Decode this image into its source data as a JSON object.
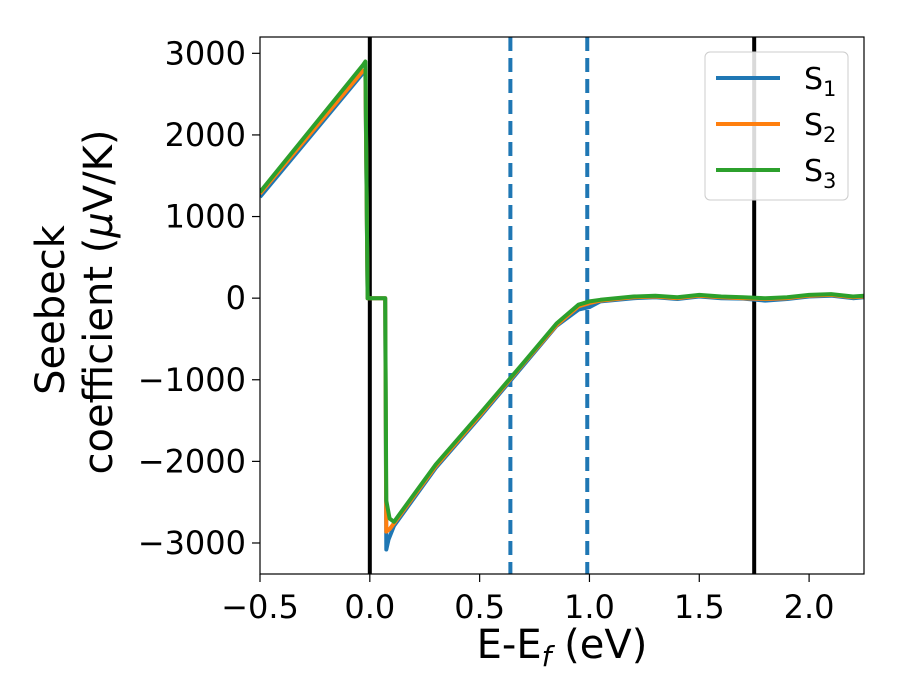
{
  "chart_data": {
    "type": "line",
    "xlabel": "E-E",
    "xlabel_sub": "f",
    "xlabel_unit": " (eV)",
    "ylabel_line1": "Seebeck",
    "ylabel_line2_prefix": "coefficient  (",
    "ylabel_mu": "μ",
    "ylabel_line2_suffix": "V/K)",
    "xlim": [
      -0.5,
      2.25
    ],
    "ylim": [
      -3380,
      3200
    ],
    "xticks": [
      -0.5,
      0.0,
      0.5,
      1.0,
      1.5,
      2.0
    ],
    "xtick_labels": [
      "−0.5",
      "0.0",
      "0.5",
      "1.0",
      "1.5",
      "2.0"
    ],
    "yticks": [
      3000,
      2000,
      1000,
      0,
      -1000,
      -2000,
      -3000
    ],
    "ytick_labels": [
      "3000",
      "2000",
      "1000",
      "0",
      "−1000",
      "−2000",
      "−3000"
    ],
    "grid": false,
    "legend_position": "top-right",
    "vlines": [
      {
        "x": 0.0,
        "color": "#000000",
        "style": "solid"
      },
      {
        "x": 1.75,
        "color": "#000000",
        "style": "solid"
      },
      {
        "x": 0.64,
        "color": "#1f77b4",
        "style": "dashed"
      },
      {
        "x": 0.99,
        "color": "#1f77b4",
        "style": "dashed"
      }
    ],
    "series": [
      {
        "name": "S",
        "sub": "1",
        "color": "#1f77b4",
        "points": [
          [
            -0.5,
            1240
          ],
          [
            -0.03,
            2760
          ],
          [
            -0.02,
            2740
          ],
          [
            -0.01,
            0
          ],
          [
            0.07,
            0
          ],
          [
            0.075,
            -3080
          ],
          [
            0.085,
            -2960
          ],
          [
            0.11,
            -2790
          ],
          [
            0.3,
            -2080
          ],
          [
            0.5,
            -1460
          ],
          [
            0.7,
            -820
          ],
          [
            0.85,
            -340
          ],
          [
            0.95,
            -140
          ],
          [
            1.0,
            -110
          ],
          [
            1.05,
            -40
          ],
          [
            1.2,
            0
          ],
          [
            1.3,
            10
          ],
          [
            1.4,
            -10
          ],
          [
            1.5,
            20
          ],
          [
            1.6,
            0
          ],
          [
            1.7,
            -5
          ],
          [
            1.8,
            -30
          ],
          [
            1.9,
            -10
          ],
          [
            2.0,
            20
          ],
          [
            2.1,
            30
          ],
          [
            2.2,
            0
          ],
          [
            2.25,
            10
          ]
        ]
      },
      {
        "name": "S",
        "sub": "2",
        "color": "#ff7f0e",
        "points": [
          [
            -0.5,
            1280
          ],
          [
            -0.03,
            2790
          ],
          [
            -0.02,
            2780
          ],
          [
            -0.01,
            0
          ],
          [
            0.07,
            0
          ],
          [
            0.075,
            -2860
          ],
          [
            0.09,
            -2830
          ],
          [
            0.11,
            -2760
          ],
          [
            0.3,
            -2060
          ],
          [
            0.5,
            -1440
          ],
          [
            0.7,
            -800
          ],
          [
            0.85,
            -330
          ],
          [
            0.95,
            -100
          ],
          [
            1.0,
            -60
          ],
          [
            1.05,
            -30
          ],
          [
            1.2,
            10
          ],
          [
            1.3,
            20
          ],
          [
            1.4,
            0
          ],
          [
            1.5,
            30
          ],
          [
            1.6,
            10
          ],
          [
            1.7,
            0
          ],
          [
            1.8,
            -10
          ],
          [
            1.9,
            0
          ],
          [
            2.0,
            30
          ],
          [
            2.1,
            40
          ],
          [
            2.2,
            10
          ],
          [
            2.25,
            20
          ]
        ]
      },
      {
        "name": "S",
        "sub": "3",
        "color": "#2ca02c",
        "points": [
          [
            -0.5,
            1300
          ],
          [
            -0.03,
            2860
          ],
          [
            -0.02,
            2900
          ],
          [
            -0.01,
            0
          ],
          [
            0.07,
            0
          ],
          [
            0.075,
            -2480
          ],
          [
            0.09,
            -2700
          ],
          [
            0.11,
            -2740
          ],
          [
            0.3,
            -2040
          ],
          [
            0.5,
            -1420
          ],
          [
            0.7,
            -790
          ],
          [
            0.85,
            -310
          ],
          [
            0.95,
            -80
          ],
          [
            1.0,
            -40
          ],
          [
            1.05,
            -20
          ],
          [
            1.2,
            20
          ],
          [
            1.3,
            30
          ],
          [
            1.4,
            10
          ],
          [
            1.5,
            40
          ],
          [
            1.6,
            20
          ],
          [
            1.7,
            10
          ],
          [
            1.8,
            0
          ],
          [
            1.9,
            10
          ],
          [
            2.0,
            40
          ],
          [
            2.1,
            50
          ],
          [
            2.2,
            20
          ],
          [
            2.25,
            30
          ]
        ]
      }
    ]
  }
}
